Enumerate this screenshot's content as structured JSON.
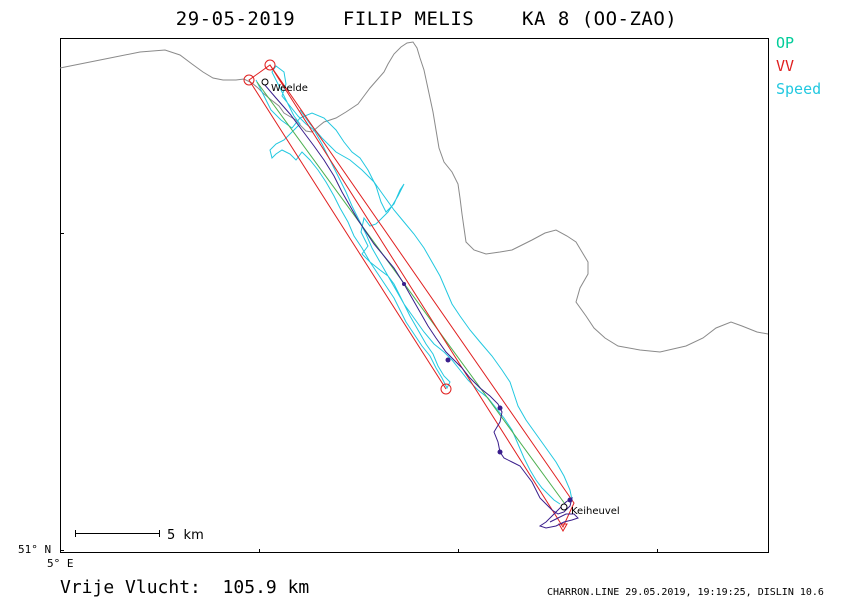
{
  "header": {
    "date": "29-05-2019",
    "pilot": "FILIP MELIS",
    "glider": "KA 8 (OO-ZAO)"
  },
  "legend": [
    {
      "label": "OP",
      "color": "#00cc99"
    },
    {
      "label": "VV",
      "color": "#e02020"
    },
    {
      "label": "Speed",
      "color": "#22c8e0"
    }
  ],
  "map": {
    "waypoints": [
      "Weelde",
      "Keiheuvel"
    ],
    "scale_bar_label": "5  km",
    "lat_label": "51° N",
    "lon_label": "5° E",
    "colors": {
      "border": "#8a8a8a",
      "route": "#e02020",
      "op": "#4caf50",
      "track_speed": "#22c8e0",
      "track_climb": "#3a1e8c"
    }
  },
  "footer": {
    "result": "Vrije Vlucht:  105.9 km",
    "software": "CHARRON.LINE 29.05.2019, 19:19:25, DISLIN 10.6"
  }
}
